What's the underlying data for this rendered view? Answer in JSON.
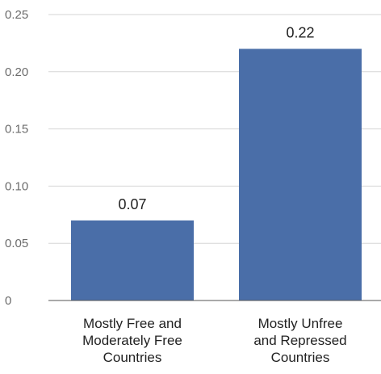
{
  "chart_data": {
    "type": "bar",
    "title": "",
    "xlabel": "",
    "ylabel": "",
    "categories": [
      [
        "Mostly Free and",
        "Moderately Free",
        "Countries"
      ],
      [
        "Mostly Unfree",
        "and Repressed",
        "Countries"
      ]
    ],
    "values": [
      0.07,
      0.22
    ],
    "value_labels": [
      "0.07",
      "0.22"
    ],
    "ylim": [
      0,
      0.25
    ],
    "yticks": [
      {
        "value": 0,
        "label": "0"
      },
      {
        "value": 0.05,
        "label": "0.05"
      },
      {
        "value": 0.1,
        "label": "0.10"
      },
      {
        "value": 0.15,
        "label": "0.15"
      },
      {
        "value": 0.2,
        "label": "0.20"
      },
      {
        "value": 0.25,
        "label": "0.25"
      }
    ],
    "grid": true,
    "legend": "none",
    "colors": {
      "bar": "#4a6ea8",
      "grid": "#d6d6d6",
      "axis": "#555555"
    }
  }
}
